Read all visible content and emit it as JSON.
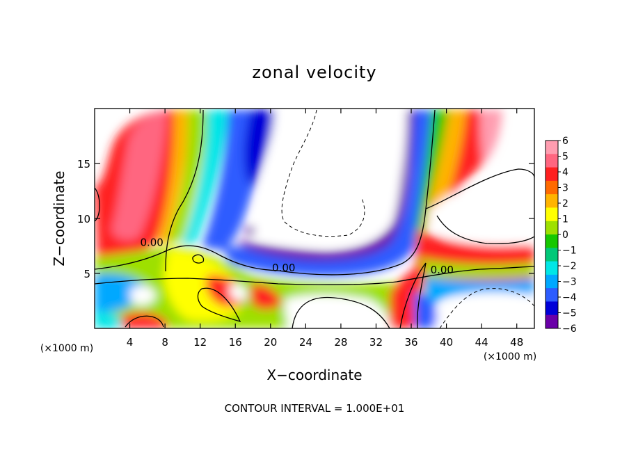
{
  "chart_data": {
    "type": "heatmap",
    "title": "zonal velocity",
    "xlabel": "X−coordinate",
    "ylabel": "Z−coordinate",
    "x_unit_label": "(×1000 m)",
    "y_unit_label": "(×1000 m)",
    "xlim": [
      0,
      50
    ],
    "ylim": [
      0,
      20
    ],
    "x_ticks": [
      4,
      8,
      12,
      16,
      20,
      24,
      28,
      32,
      36,
      40,
      44,
      48
    ],
    "y_ticks": [
      5,
      10,
      15
    ],
    "contour_labels": [
      {
        "text": "0.00",
        "x": 6.5,
        "y": 7.5
      },
      {
        "text": "0.00",
        "x": 21.5,
        "y": 5.2
      },
      {
        "text": "0.00",
        "x": 39.5,
        "y": 5.0
      }
    ],
    "colorbar": {
      "min": -6,
      "max": 6,
      "ticks": [
        "6",
        "5",
        "4",
        "3",
        "2",
        "1",
        "0",
        "−1",
        "−2",
        "−3",
        "−4",
        "−5",
        "−6"
      ],
      "colors": [
        "#ff9db0",
        "#ff6680",
        "#ff2020",
        "#ff6a00",
        "#ffb400",
        "#ffff00",
        "#9ee000",
        "#16c800",
        "#00c878",
        "#00e6e6",
        "#00a8ff",
        "#2d5cff",
        "#0000d8",
        "#6a00a8"
      ]
    },
    "footer": "CONTOUR INTERVAL = 1.000E+01"
  }
}
